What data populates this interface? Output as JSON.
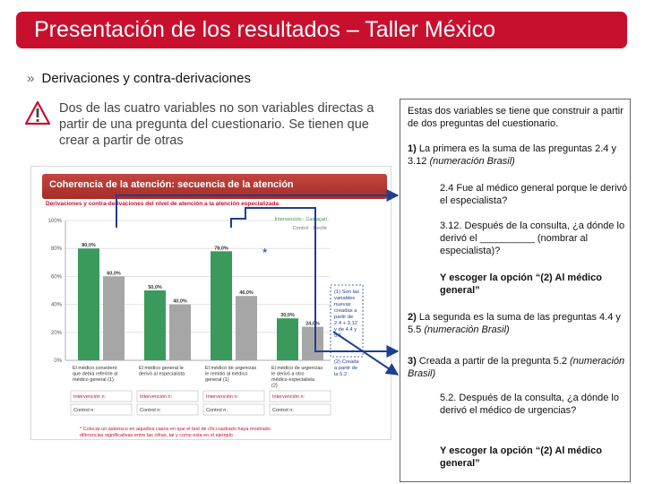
{
  "header": {
    "title": "Presentación de los resultados – Taller México"
  },
  "section": {
    "chevron": "»",
    "title": "Derivaciones y contra-derivaciones"
  },
  "warning": {
    "icon": "warning-icon",
    "text": "Dos de las cuatro variables no son variables directas a partir de una pregunta del cuestionario. Se tienen que crear a partir de otras"
  },
  "chart_data": {
    "type": "bar",
    "title": "Coherencia de la atención: secuencia de la atención",
    "subtitle": "Derivaciones y contra-derivaciones del nivel de atención a la atención especializada",
    "categories": [
      "El médico consideró que debía referirle al médico general (1)",
      "El médico general le derivó al especialista",
      "El médico de urgencias le remitió al médico general (1)",
      "El médico de urgencias le derivó a otro médico especialista (2)"
    ],
    "series": [
      {
        "name": "Intervención - Camaçari",
        "color": "#3a9a5b",
        "values": [
          80.0,
          50.0,
          78.0,
          30.0
        ]
      },
      {
        "name": "Control - Recife",
        "color": "#a6a6a6",
        "values": [
          60.0,
          40.0,
          46.0,
          24.0
        ]
      }
    ],
    "data_labels": [
      [
        "80,0%",
        "50,0%",
        "78,0%",
        "30,0%"
      ],
      [
        "60,0%",
        "40,0%",
        "46,0%",
        "24,0%"
      ]
    ],
    "yticks": [
      "100%",
      "80%",
      "60%",
      "40%",
      "20%",
      "0%"
    ],
    "ylim": [
      0,
      100
    ],
    "legend_position": "top-right",
    "star": "*",
    "annotations": [
      "(1) Son las variables nuevas creadas a partir de 2.4 + 3.12 y de 4.4 y 5.5",
      "(2) Creada a partir de la 5.2"
    ],
    "count_rows": [
      [
        "Intervención n:",
        "Intervención n:",
        "Intervención n:",
        "Intervención n:"
      ],
      [
        "Control n:",
        "Control n:",
        "Control n:",
        "Control n:"
      ]
    ],
    "footnote": "* Colocar un asterisco en aquellos casos en que el test de chi-cuadrado haya mostrado diferencias significativas entre las cifras, tal y como esta en el ejemplo"
  },
  "right_panel": {
    "intro": "Estas dos variables se tiene que construir a partir de dos preguntas del cuestionario.",
    "item1_num": "1)",
    "item1_text": " La primera es la suma de las preguntas 2.4 y 3.12 ",
    "item1_italic": "(numeración Brasil)",
    "q24": "2.4 Fue al médico general porque le derivó el especialista?",
    "q312": "3.12. Después de la consulta, ¿a dónde lo derivó el __________ (nombrar al especialista)?",
    "option1": "Y escoger la opción “(2) Al médico general”",
    "item2_num": "2)",
    "item2_text": " La segunda es la suma de las preguntas 4.4 y 5.5 ",
    "item2_italic": "(numeración Brasil)",
    "item3_num": "3)",
    "item3_text": " Creada a partir de la pregunta 5.2 ",
    "item3_italic": "(numeración Brasil)",
    "q52": "5.2. Después de la consulta, ¿a dónde lo derivó el médico de urgencias?",
    "option2": "Y escoger la opción “(2) Al médico general”"
  }
}
